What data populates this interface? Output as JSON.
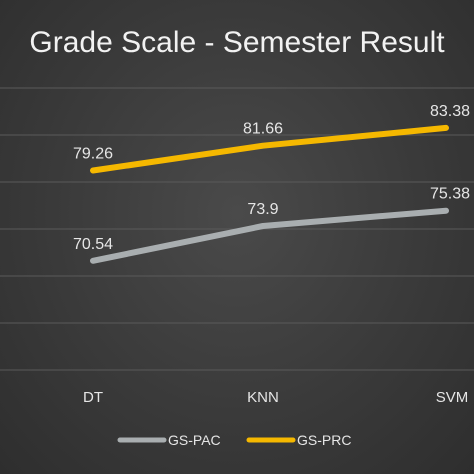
{
  "chart_data": {
    "type": "line",
    "title": "Grade Scale - Semester Result",
    "categories": [
      "DT",
      "KNN",
      "SVM"
    ],
    "series": [
      {
        "name": "GS-PAC",
        "values": [
          70.54,
          73.9,
          75.38
        ],
        "color": "#a9aeb0"
      },
      {
        "name": "GS-PRC",
        "values": [
          79.26,
          81.66,
          83.38
        ],
        "color": "#f5b800"
      }
    ],
    "ylim": [
      60,
      88
    ],
    "grid": true,
    "legend_position": "bottom"
  }
}
